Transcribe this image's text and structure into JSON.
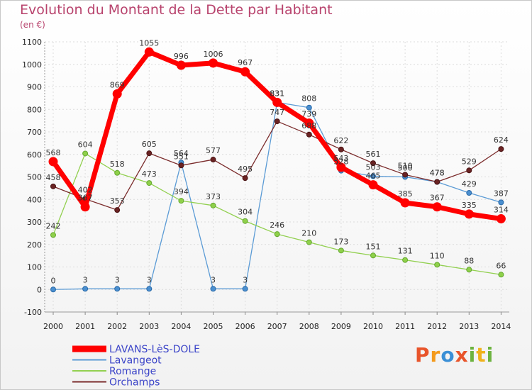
{
  "header": {
    "title": "Evolution du Montant de la Dette par Habitant",
    "unit": "(en €)"
  },
  "logo": {
    "letters": [
      "P",
      "r",
      "o",
      "x",
      "i",
      "t",
      "i"
    ],
    "colors": [
      "#e8542a",
      "#f39a1c",
      "#3a8fd6",
      "#e8542a",
      "#6db33f",
      "#f0b21c",
      "#6db33f"
    ]
  },
  "chart_data": {
    "type": "line",
    "title": "Evolution du Montant de la Dette par Habitant",
    "ylabel": "(en €)",
    "xlabel": "",
    "x": [
      "2000",
      "2001",
      "2002",
      "2003",
      "2004",
      "2005",
      "2006",
      "2007",
      "2008",
      "2009",
      "2010",
      "2011",
      "2012",
      "2013",
      "2014"
    ],
    "ylim": [
      -100,
      1100
    ],
    "yticks": [
      -100,
      0,
      100,
      200,
      300,
      400,
      500,
      600,
      700,
      800,
      900,
      1000,
      1100
    ],
    "grid": true,
    "legend_position": "bottom-left",
    "series": [
      {
        "name": "LAVANS-LèS-DOLE",
        "color": "#ff0000",
        "values": [
          568,
          367,
          869,
          1055,
          996,
          1006,
          967,
          831,
          739,
          543,
          465,
          385,
          367,
          335,
          314
        ]
      },
      {
        "name": "Lavangeot",
        "color": "#5b9bd5",
        "values": [
          0,
          3,
          3,
          3,
          564,
          3,
          3,
          831,
          808,
          528,
          503,
          500,
          478,
          429,
          387
        ]
      },
      {
        "name": "Romange",
        "color": "#92d050",
        "values": [
          242,
          604,
          518,
          473,
          394,
          373,
          304,
          246,
          210,
          173,
          151,
          131,
          110,
          88,
          66
        ]
      },
      {
        "name": "Orchamps",
        "color": "#7b2c2c",
        "values": [
          458,
          402,
          353,
          605,
          551,
          577,
          495,
          747,
          688,
          622,
          561,
          510,
          478,
          529,
          624
        ]
      }
    ]
  }
}
